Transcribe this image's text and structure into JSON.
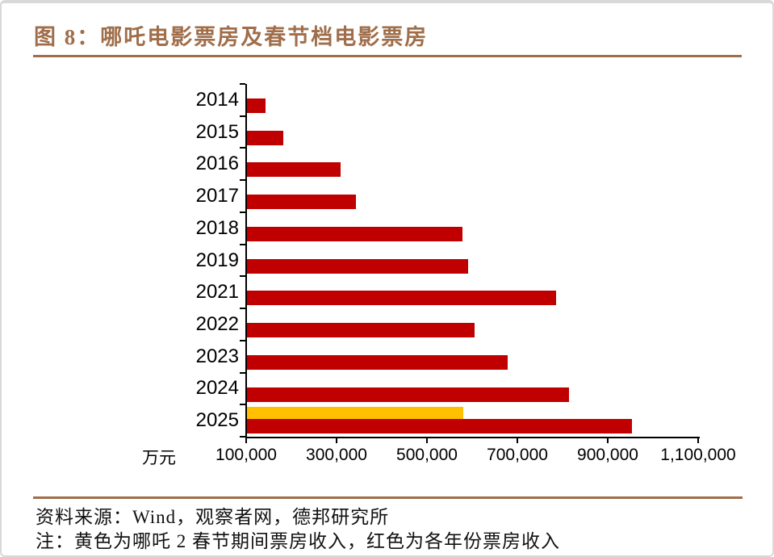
{
  "colors": {
    "accent": "#A06E4A",
    "bar_red": "#C00000",
    "bar_yellow": "#FFC000",
    "page_border": "#D9D9D9",
    "page_background": "#FFFFFF"
  },
  "chart_data": {
    "type": "bar",
    "orientation": "horizontal",
    "title": "图 8：哪吒电影票房及春节档电影票房",
    "value_unit": "万元",
    "categories": [
      "2014",
      "2015",
      "2016",
      "2017",
      "2018",
      "2019",
      "2021",
      "2022",
      "2023",
      "2024",
      "2025"
    ],
    "series": [
      {
        "name": "哪吒2春节期间票房收入",
        "color": "#FFC000",
        "values": [
          null,
          null,
          null,
          null,
          null,
          null,
          null,
          null,
          null,
          null,
          578000
        ]
      },
      {
        "name": "各年份票房收入",
        "color": "#C00000",
        "values": [
          141000,
          181000,
          308000,
          341000,
          577000,
          589000,
          784000,
          604000,
          676000,
          812000,
          951000
        ]
      }
    ],
    "xlim": [
      100000,
      1100000
    ],
    "x_ticks": [
      100000,
      300000,
      500000,
      700000,
      900000,
      1100000
    ],
    "x_tick_labels": [
      "100,000",
      "300,000",
      "500,000",
      "700,000",
      "900,000",
      "1,100,000"
    ],
    "grid": false,
    "legend": "none"
  },
  "footer": {
    "source": "资料来源：Wind，观察者网，德邦研究所",
    "note": "注：黄色为哪吒 2 春节期间票房收入，红色为各年份票房收入"
  }
}
